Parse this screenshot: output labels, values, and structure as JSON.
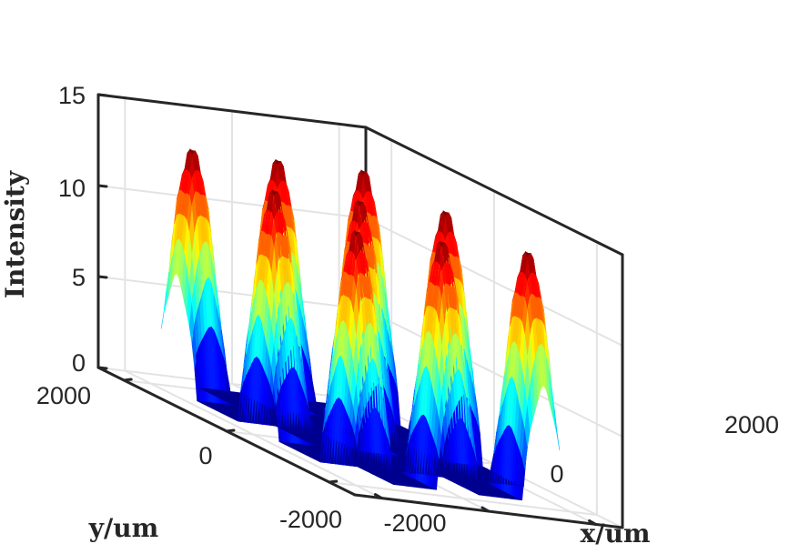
{
  "chart_data": {
    "type": "surface",
    "xlabel": "x/um",
    "ylabel": "y/um",
    "zlabel": "Intensity",
    "x_ticks": [
      "-2000",
      "0",
      "2000"
    ],
    "y_ticks": [
      "-2000",
      "0",
      "2000"
    ],
    "z_ticks": [
      "0",
      "5",
      "10",
      "15"
    ],
    "x_tick_values": [
      -2000,
      0,
      2000
    ],
    "y_tick_values": [
      -2000,
      0,
      2000
    ],
    "z_tick_values": [
      0,
      5,
      10,
      15
    ],
    "xlim": [
      -2500,
      2500
    ],
    "ylim": [
      -2500,
      2500
    ],
    "zlim": [
      0,
      15
    ],
    "grid": true,
    "box": true,
    "colormap": "jet",
    "color_range": [
      0,
      13.5
    ],
    "description_values": {
      "surface_extent": [
        -1900,
        1900
      ],
      "peak_grid": 5,
      "peak_spacing": 800,
      "peak_intensity_max": 13.5,
      "valley_intensity_min": 0.2
    }
  }
}
